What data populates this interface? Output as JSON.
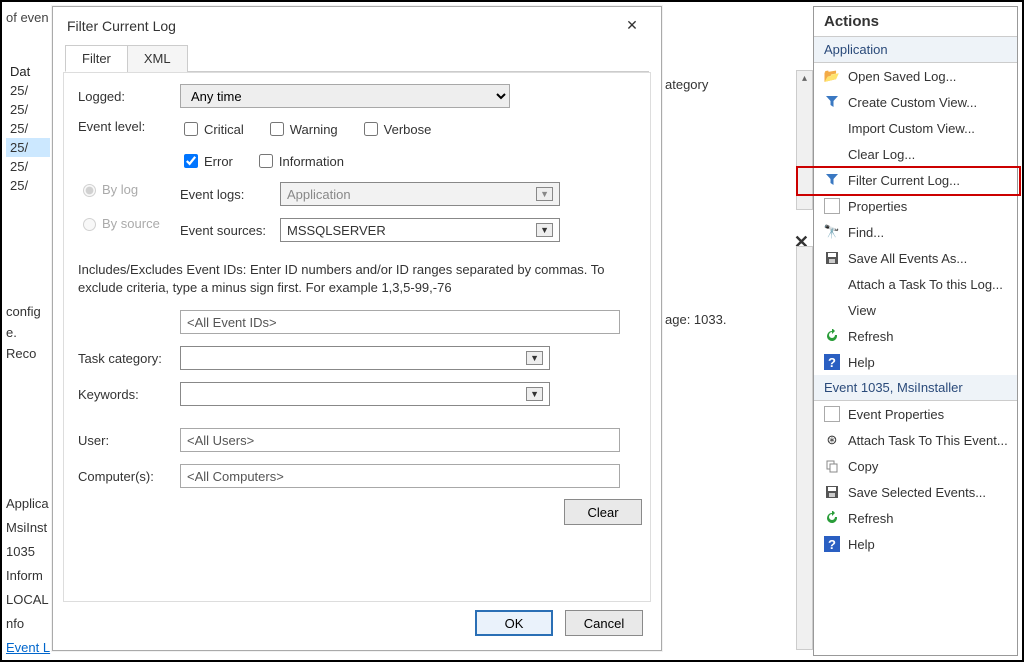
{
  "background": {
    "top_left_prefix": "of even",
    "list_header": "Dat",
    "list_rows": [
      "25/",
      "25/",
      "25/",
      "25/",
      "25/",
      "25/"
    ],
    "category_header": "ategory",
    "detail_lines": [
      "config",
      "e. Reco"
    ],
    "detail_right": "age: 1033.",
    "bottom_lines": [
      "Applica",
      "MsiInst",
      "1035",
      "Inform",
      "LOCAL S",
      "nfo"
    ],
    "bottom_link": "Event L"
  },
  "dialog": {
    "title": "Filter Current Log",
    "tabs": {
      "filter": "Filter",
      "xml": "XML"
    },
    "labels": {
      "logged": "Logged:",
      "event_level": "Event level:",
      "by_log": "By log",
      "by_source": "By source",
      "event_logs": "Event logs:",
      "event_sources": "Event sources:",
      "task_category": "Task category:",
      "keywords": "Keywords:",
      "user": "User:",
      "computers": "Computer(s):"
    },
    "logged_value": "Any time",
    "levels": {
      "critical": "Critical",
      "warning": "Warning",
      "verbose": "Verbose",
      "error": "Error",
      "information": "Information"
    },
    "level_checked": {
      "critical": false,
      "warning": false,
      "verbose": false,
      "error": true,
      "information": false
    },
    "event_logs_value": "Application",
    "event_sources_value": "MSSQLSERVER",
    "include_desc": "Includes/Excludes Event IDs: Enter ID numbers and/or ID ranges separated by commas. To exclude criteria, type a minus sign first. For example 1,3,5-99,-76",
    "event_ids_placeholder": "<All Event IDs>",
    "user_placeholder": "<All Users>",
    "computers_placeholder": "<All Computers>",
    "buttons": {
      "clear": "Clear",
      "ok": "OK",
      "cancel": "Cancel"
    }
  },
  "actions": {
    "header": "Actions",
    "group1_title": "Application",
    "group1": [
      {
        "icon": "folder",
        "label": "Open Saved Log..."
      },
      {
        "icon": "funnel",
        "label": "Create Custom View..."
      },
      {
        "icon": "",
        "label": "Import Custom View..."
      },
      {
        "icon": "",
        "label": "Clear Log..."
      },
      {
        "icon": "funnel",
        "label": "Filter Current Log..."
      },
      {
        "icon": "props",
        "label": "Properties"
      },
      {
        "icon": "find",
        "label": "Find..."
      },
      {
        "icon": "save",
        "label": "Save All Events As..."
      },
      {
        "icon": "",
        "label": "Attach a Task To this Log..."
      },
      {
        "icon": "",
        "label": "View"
      },
      {
        "icon": "refresh",
        "label": "Refresh"
      },
      {
        "icon": "help",
        "label": "Help"
      }
    ],
    "group2_title": "Event 1035, MsiInstaller",
    "group2": [
      {
        "icon": "props",
        "label": "Event Properties"
      },
      {
        "icon": "attach",
        "label": "Attach Task To This Event..."
      },
      {
        "icon": "copy",
        "label": "Copy"
      },
      {
        "icon": "save",
        "label": "Save Selected Events..."
      },
      {
        "icon": "refresh",
        "label": "Refresh"
      },
      {
        "icon": "help",
        "label": "Help"
      }
    ],
    "highlight_index": 4
  }
}
